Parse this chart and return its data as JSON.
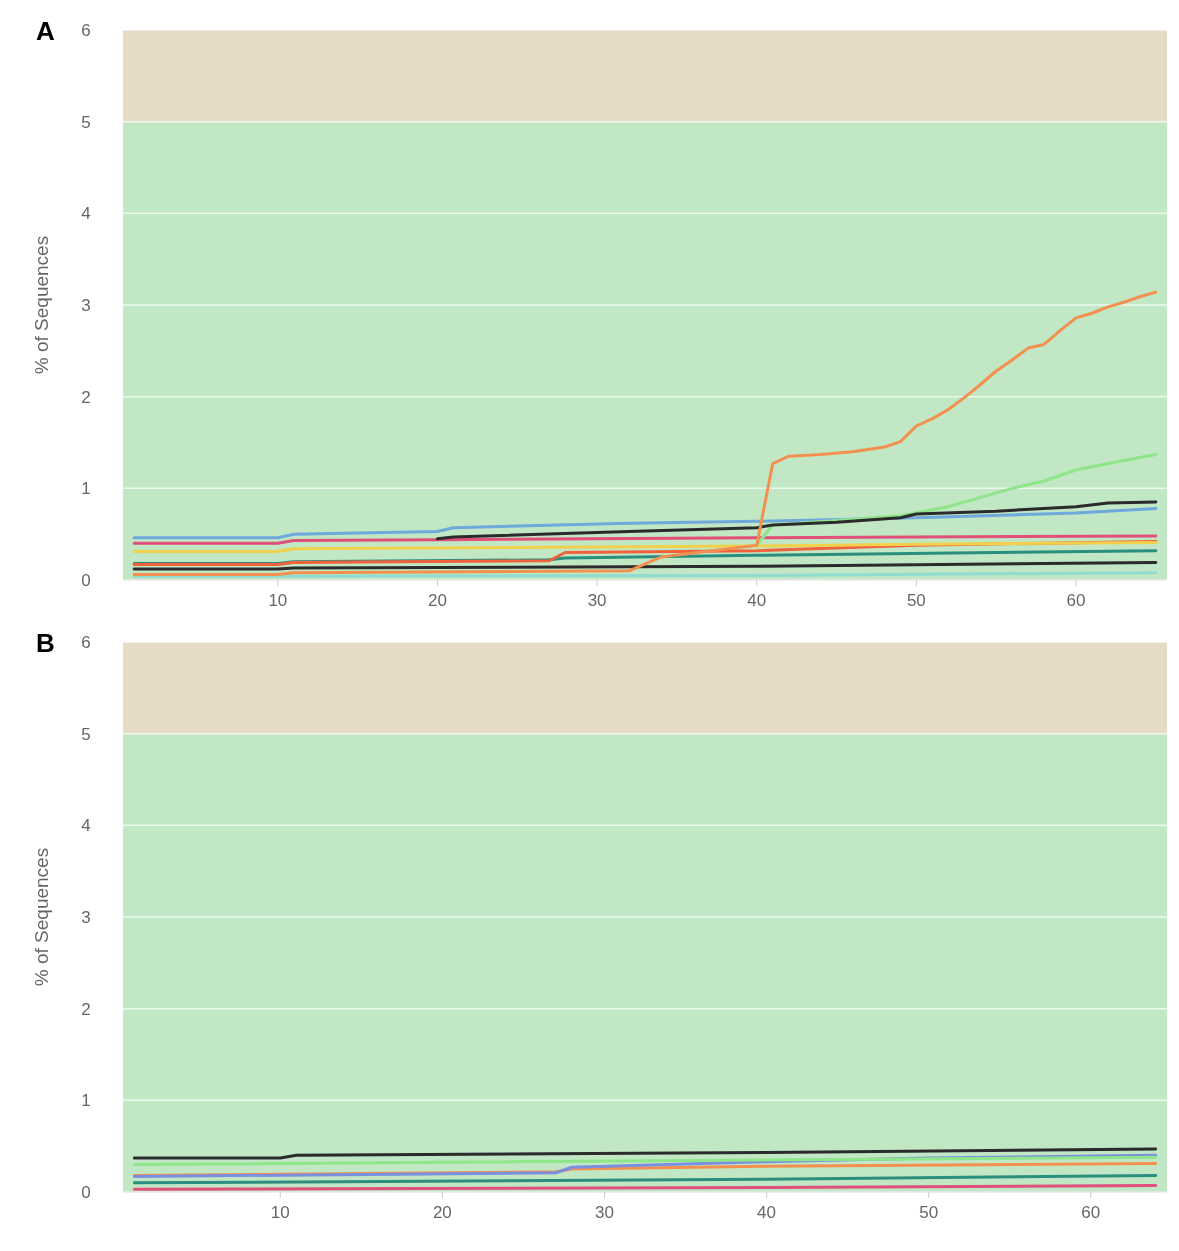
{
  "chart_data": [
    {
      "type": "line",
      "title": "A",
      "ylabel": "% of Sequences",
      "xlim": [
        0.3,
        65.7
      ],
      "xticks": [
        10,
        20,
        30,
        40,
        50,
        60
      ],
      "ylim": [
        0,
        6
      ],
      "yticks": [
        0,
        1,
        2,
        3,
        4,
        5,
        6
      ],
      "grid": "y",
      "marker": "none",
      "line_style": "solid",
      "bands": [
        {
          "axis": "y",
          "from": 0,
          "to": 5,
          "color": "#c2e7c4"
        },
        {
          "axis": "y",
          "from": 5,
          "to": 6,
          "color": "#e6dcc6"
        }
      ],
      "series": [
        {
          "color": "#8fdcd0",
          "x": [
            1,
            40,
            65
          ],
          "values": [
            0.04,
            0.05,
            0.08
          ]
        },
        {
          "color": "#2b2b2b",
          "x": [
            1,
            10,
            11,
            40,
            65
          ],
          "values": [
            0.12,
            0.12,
            0.13,
            0.15,
            0.19
          ]
        },
        {
          "color": "#2a8f7f",
          "x": [
            1,
            10,
            11,
            27,
            28,
            40,
            65
          ],
          "values": [
            0.18,
            0.18,
            0.2,
            0.22,
            0.24,
            0.27,
            0.32
          ]
        },
        {
          "color": "#f0613c",
          "x": [
            1,
            10,
            11,
            27,
            28,
            40,
            50,
            65
          ],
          "values": [
            0.17,
            0.17,
            0.19,
            0.21,
            0.3,
            0.32,
            0.38,
            0.42
          ]
        },
        {
          "color": "#f2d04c",
          "x": [
            1,
            10,
            11,
            30,
            40,
            50,
            65
          ],
          "values": [
            0.31,
            0.31,
            0.34,
            0.36,
            0.37,
            0.39,
            0.41
          ]
        },
        {
          "color": "#e0507a",
          "x": [
            1,
            10,
            11,
            20,
            40,
            50,
            65
          ],
          "values": [
            0.4,
            0.4,
            0.43,
            0.44,
            0.46,
            0.47,
            0.48
          ]
        },
        {
          "color": "#6fa8dc",
          "x": [
            1,
            10,
            11,
            20,
            21,
            32,
            40,
            50,
            60,
            65
          ],
          "values": [
            0.46,
            0.46,
            0.5,
            0.53,
            0.57,
            0.62,
            0.64,
            0.68,
            0.73,
            0.78
          ]
        },
        {
          "color": "#8ee58a",
          "x": [
            40,
            41,
            45,
            49,
            52,
            56,
            58,
            60,
            62,
            65
          ],
          "values": [
            0.38,
            0.6,
            0.65,
            0.7,
            0.8,
            1.0,
            1.08,
            1.2,
            1.27,
            1.37
          ]
        },
        {
          "color": "#2b2b2b",
          "x": [
            20,
            21,
            32,
            40,
            41,
            45,
            49,
            50,
            55,
            60,
            62,
            65
          ],
          "values": [
            0.45,
            0.47,
            0.53,
            0.57,
            0.6,
            0.63,
            0.68,
            0.72,
            0.75,
            0.8,
            0.84,
            0.85
          ]
        },
        {
          "color": "#f3904f",
          "x": [
            1,
            10,
            11,
            32,
            34,
            40,
            41,
            42,
            44,
            46,
            48,
            49,
            50,
            51,
            52,
            53,
            54,
            55,
            56,
            57,
            58,
            59,
            60,
            61,
            62,
            63,
            64,
            65
          ],
          "values": [
            0.06,
            0.06,
            0.08,
            0.1,
            0.25,
            0.38,
            1.27,
            1.35,
            1.37,
            1.4,
            1.45,
            1.51,
            1.68,
            1.76,
            1.86,
            1.99,
            2.13,
            2.28,
            2.4,
            2.53,
            2.57,
            2.72,
            2.86,
            2.91,
            2.98,
            3.03,
            3.09,
            3.14
          ]
        }
      ]
    },
    {
      "type": "line",
      "title": "B",
      "ylabel": "% of Sequences",
      "xlim": [
        0.3,
        64.7
      ],
      "xticks": [
        10,
        20,
        30,
        40,
        50,
        60
      ],
      "ylim": [
        0,
        6
      ],
      "yticks": [
        0,
        1,
        2,
        3,
        4,
        5,
        6
      ],
      "grid": "y",
      "marker": "none",
      "line_style": "solid",
      "bands": [
        {
          "axis": "y",
          "from": 0,
          "to": 5,
          "color": "#c2e7c4"
        },
        {
          "axis": "y",
          "from": 5,
          "to": 6,
          "color": "#e6dcc6"
        }
      ],
      "series": [
        {
          "color": "#e0507a",
          "x": [
            1,
            40,
            64
          ],
          "values": [
            0.03,
            0.05,
            0.07
          ]
        },
        {
          "color": "#2a8f7f",
          "x": [
            1,
            40,
            64
          ],
          "values": [
            0.1,
            0.14,
            0.18
          ]
        },
        {
          "color": "#f3904f",
          "x": [
            1,
            27,
            28,
            40,
            64
          ],
          "values": [
            0.18,
            0.22,
            0.25,
            0.28,
            0.31
          ]
        },
        {
          "color": "#7a8fe0",
          "x": [
            1,
            27,
            28,
            40,
            50,
            64
          ],
          "values": [
            0.17,
            0.21,
            0.27,
            0.33,
            0.37,
            0.4
          ]
        },
        {
          "color": "#8ee58a",
          "x": [
            1,
            64
          ],
          "values": [
            0.3,
            0.38
          ]
        },
        {
          "color": "#2b2b2b",
          "x": [
            1,
            10,
            11,
            40,
            64
          ],
          "values": [
            0.37,
            0.37,
            0.4,
            0.43,
            0.47
          ]
        }
      ]
    }
  ]
}
